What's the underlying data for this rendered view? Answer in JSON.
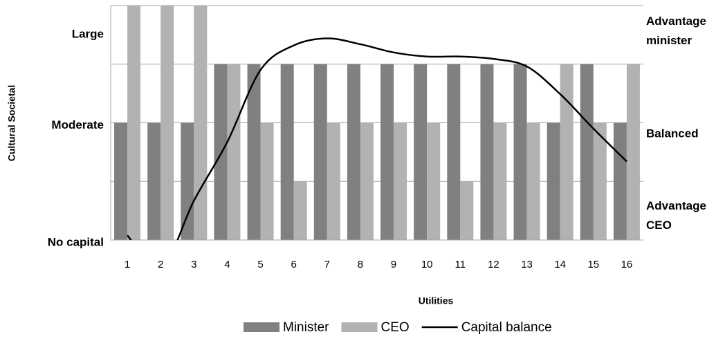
{
  "chart_data": {
    "type": "bar_line",
    "xlabel": "Utilities",
    "ylabel": "Cultural Societal",
    "categories": [
      "1",
      "2",
      "3",
      "4",
      "5",
      "6",
      "7",
      "8",
      "9",
      "10",
      "11",
      "12",
      "13",
      "14",
      "15",
      "16"
    ],
    "series": [
      {
        "name": "Minister",
        "color": "#808080",
        "kind": "bar",
        "values": [
          2,
          2,
          2,
          3,
          3,
          3,
          3,
          3,
          3,
          3,
          3,
          3,
          3,
          2,
          3,
          2
        ]
      },
      {
        "name": "CEO",
        "color": "#b2b2b2",
        "kind": "bar",
        "values": [
          4,
          4,
          4,
          3,
          2,
          1,
          2,
          2,
          2,
          2,
          1,
          2,
          2,
          3,
          2,
          3
        ]
      },
      {
        "name": "Capital balance",
        "color": "#000000",
        "kind": "line",
        "axis": "y2",
        "values": [
          0.08,
          -0.5,
          0.67,
          1.67,
          2.9,
          3.32,
          3.44,
          3.34,
          3.2,
          3.13,
          3.13,
          3.09,
          2.96,
          2.49,
          1.9,
          1.34
        ]
      }
    ],
    "ylim": [
      0,
      4
    ],
    "yticks": [
      {
        "value": 0,
        "label": "No capital"
      },
      {
        "value": 2,
        "label": "Moderate"
      },
      {
        "value": 3.55,
        "label": "Large"
      }
    ],
    "grid_values": [
      1,
      2,
      3,
      4
    ],
    "y2lim": [
      0,
      4
    ],
    "y2ticks": [
      {
        "value": 0.4,
        "label": "Advantage CEO"
      },
      {
        "value": 1.8,
        "label": "Balanced"
      },
      {
        "value": 3.55,
        "label": "Advantage minister"
      }
    ],
    "legend": "bottom"
  }
}
